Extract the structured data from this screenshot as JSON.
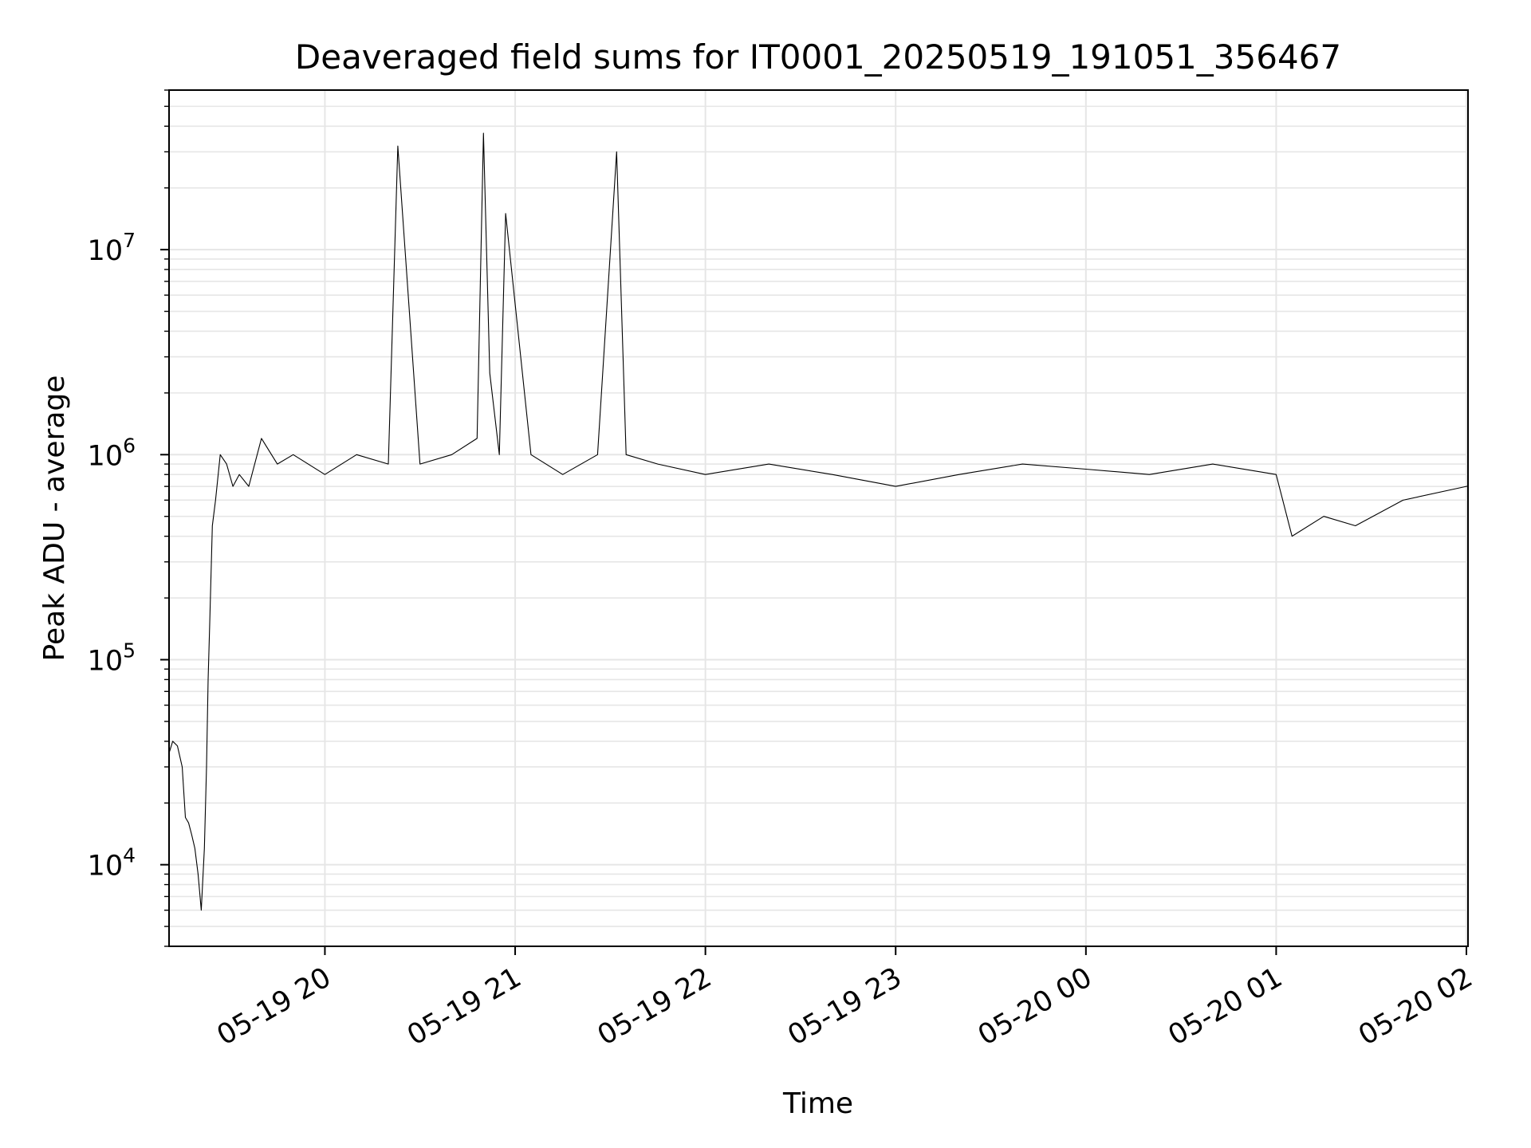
{
  "chart_data": {
    "type": "line",
    "title": "Deaveraged field sums for IT0001_20250519_191051_356467",
    "xlabel": "Time",
    "ylabel": "Peak ADU - average",
    "y_scale": "log",
    "ylim": [
      4000,
      60000000
    ],
    "xlim": [
      "2025-05-19 19:10:51",
      "2025-05-20 02:00:30"
    ],
    "grid": true,
    "legend": "none",
    "colors": {
      "line": "#000000",
      "grid": "#e6e6e6",
      "axes": "#000000"
    },
    "x_ticks": [
      {
        "label": "05-19 20",
        "value": "2025-05-19 20:00"
      },
      {
        "label": "05-19 21",
        "value": "2025-05-19 21:00"
      },
      {
        "label": "05-19 22",
        "value": "2025-05-19 22:00"
      },
      {
        "label": "05-19 23",
        "value": "2025-05-19 23:00"
      },
      {
        "label": "05-20 00",
        "value": "2025-05-20 00:00"
      },
      {
        "label": "05-20 01",
        "value": "2025-05-20 01:00"
      },
      {
        "label": "05-20 02",
        "value": "2025-05-20 02:00"
      }
    ],
    "y_ticks": [
      {
        "base": "10",
        "exp": "4",
        "value": 10000
      },
      {
        "base": "10",
        "exp": "5",
        "value": 100000
      },
      {
        "base": "10",
        "exp": "6",
        "value": 1000000
      },
      {
        "base": "10",
        "exp": "7",
        "value": 10000000
      }
    ],
    "series": [
      {
        "x": [
          "2025-05-19 19:10:51",
          "2025-05-19 19:12:00",
          "2025-05-19 19:13:30",
          "2025-05-19 19:15:00",
          "2025-05-19 19:16:00",
          "2025-05-19 19:17:00",
          "2025-05-19 19:18:00",
          "2025-05-19 19:19:00",
          "2025-05-19 19:20:00",
          "2025-05-19 19:21:00",
          "2025-05-19 19:22:00",
          "2025-05-19 19:22:40",
          "2025-05-19 19:23:10",
          "2025-05-19 19:23:40",
          "2025-05-19 19:24:30",
          "2025-05-19 19:25:30",
          "2025-05-19 19:27:00",
          "2025-05-19 19:29:00",
          "2025-05-19 19:31:00",
          "2025-05-19 19:33:00",
          "2025-05-19 19:36:00",
          "2025-05-19 19:40:00",
          "2025-05-19 19:45:00",
          "2025-05-19 19:50:00",
          "2025-05-19 20:00:00",
          "2025-05-19 20:10:00",
          "2025-05-19 20:20:00",
          "2025-05-19 20:23:00",
          "2025-05-19 20:30:00",
          "2025-05-19 20:40:00",
          "2025-05-19 20:48:00",
          "2025-05-19 20:50:00",
          "2025-05-19 20:52:00",
          "2025-05-19 20:55:00",
          "2025-05-19 20:57:00",
          "2025-05-19 21:05:00",
          "2025-05-19 21:15:00",
          "2025-05-19 21:26:00",
          "2025-05-19 21:32:00",
          "2025-05-19 21:35:00",
          "2025-05-19 21:45:00",
          "2025-05-19 22:00:00",
          "2025-05-19 22:20:00",
          "2025-05-19 22:40:00",
          "2025-05-19 23:00:00",
          "2025-05-19 23:20:00",
          "2025-05-19 23:40:00",
          "2025-05-20 00:00:00",
          "2025-05-20 00:20:00",
          "2025-05-20 00:40:00",
          "2025-05-20 01:00:00",
          "2025-05-20 01:05:00",
          "2025-05-20 01:15:00",
          "2025-05-20 01:25:00",
          "2025-05-20 01:40:00",
          "2025-05-20 02:00:00",
          "2025-05-20 02:00:30"
        ],
        "values": [
          35000,
          40000,
          38000,
          30000,
          17000,
          16000,
          14000,
          12000,
          9000,
          6000,
          12000,
          30000,
          80000,
          150000,
          450000,
          600000,
          1000000,
          900000,
          700000,
          800000,
          700000,
          1200000,
          900000,
          1000000,
          800000,
          1000000,
          900000,
          32000000,
          900000,
          1000000,
          1200000,
          37000000,
          2500000,
          1000000,
          15000000,
          1000000,
          800000,
          1000000,
          30000000,
          1000000,
          900000,
          800000,
          900000,
          800000,
          700000,
          800000,
          900000,
          850000,
          800000,
          900000,
          800000,
          400000,
          500000,
          450000,
          600000,
          700000,
          700000
        ]
      }
    ]
  }
}
